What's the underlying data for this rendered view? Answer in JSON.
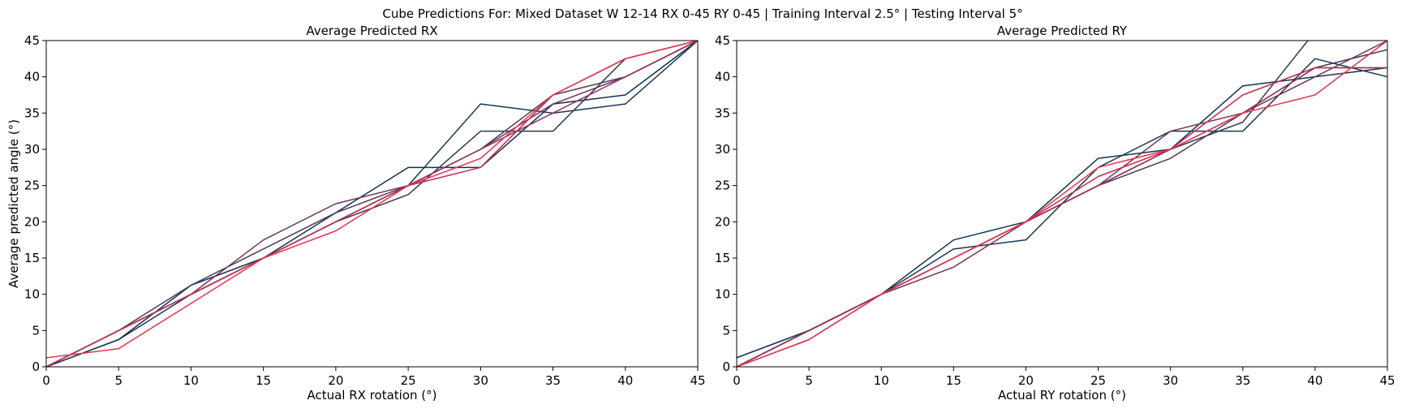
{
  "suptitle": "Cube Predictions For: Mixed Dataset W 12-14 RX 0-45 RY 0-45 | Training Interval 2.5° | Testing Interval 5°",
  "chart_data": [
    {
      "type": "line",
      "title": "Average Predicted RX",
      "xlabel": "Actual RX rotation (°)",
      "ylabel": "Average predicted angle (°)",
      "xlim": [
        0,
        45
      ],
      "ylim": [
        0,
        45
      ],
      "xticks": [
        0,
        5,
        10,
        15,
        20,
        25,
        30,
        35,
        40,
        45
      ],
      "yticks": [
        0,
        5,
        10,
        15,
        20,
        25,
        30,
        35,
        40,
        45
      ],
      "grid": false,
      "x": [
        0,
        5,
        10,
        15,
        20,
        25,
        30,
        35,
        40,
        45
      ],
      "series": [
        {
          "color": "#0e3350",
          "values": [
            0,
            3.75,
            11.25,
            15,
            21.25,
            27.5,
            27.5,
            36.25,
            37.5,
            45
          ]
        },
        {
          "color": "#1b3852",
          "values": [
            0,
            3.75,
            10,
            15,
            20,
            25,
            36.25,
            35,
            36.25,
            45
          ]
        },
        {
          "color": "#2d3a56",
          "values": [
            0,
            5,
            10,
            15,
            20,
            23.75,
            32.5,
            32.5,
            42.5,
            45
          ]
        },
        {
          "color": "#4b3a5c",
          "values": [
            0,
            5,
            11.25,
            16.25,
            21.25,
            25,
            30,
            37.5,
            40,
            45
          ]
        },
        {
          "color": "#6e3458",
          "values": [
            0,
            5,
            10,
            17.5,
            22.5,
            25,
            30,
            36.25,
            40,
            45
          ]
        },
        {
          "color": "#9a3158",
          "values": [
            0,
            5,
            10,
            15,
            20,
            25,
            30,
            35,
            40,
            45
          ]
        },
        {
          "color": "#c22d4f",
          "values": [
            0,
            5,
            10,
            15,
            20,
            25,
            27.5,
            37.5,
            42.5,
            45
          ]
        },
        {
          "color": "#e8334b",
          "values": [
            1.25,
            2.5,
            8.75,
            15,
            18.75,
            25,
            28.75,
            37.5,
            42.5,
            45
          ]
        }
      ]
    },
    {
      "type": "line",
      "title": "Average Predicted RY",
      "xlabel": "Actual RY rotation (°)",
      "ylabel": "",
      "xlim": [
        0,
        45
      ],
      "ylim": [
        0,
        45
      ],
      "xticks": [
        0,
        5,
        10,
        15,
        20,
        25,
        30,
        35,
        40,
        45
      ],
      "yticks": [
        0,
        5,
        10,
        15,
        20,
        25,
        30,
        35,
        40,
        45
      ],
      "grid": false,
      "x": [
        0,
        5,
        10,
        15,
        20,
        25,
        30,
        35,
        40,
        45
      ],
      "series": [
        {
          "color": "#0e3350",
          "values": [
            1.25,
            5,
            10,
            17.5,
            20,
            28.75,
            30,
            38.75,
            40,
            41.25
          ]
        },
        {
          "color": "#1b3852",
          "values": [
            1.25,
            5,
            10,
            16.25,
            17.5,
            27.5,
            32.5,
            32.5,
            42.5,
            40
          ]
        },
        {
          "color": "#2d3a56",
          "values": [
            0,
            5,
            10,
            15,
            20,
            25,
            30,
            33.75,
            46.25,
            45
          ]
        },
        {
          "color": "#4b3a5c",
          "values": [
            0,
            5,
            10,
            15,
            20,
            25,
            28.75,
            35,
            41.25,
            43.75
          ]
        },
        {
          "color": "#6e3458",
          "values": [
            0,
            5,
            10,
            13.75,
            20,
            25,
            32.5,
            35,
            40,
            45
          ]
        },
        {
          "color": "#9a3158",
          "values": [
            0,
            5,
            10,
            15,
            20,
            25,
            30,
            35,
            41.25,
            41.25
          ]
        },
        {
          "color": "#c22d4f",
          "values": [
            0,
            3.75,
            10,
            15,
            20,
            26.25,
            30,
            37.5,
            41.25,
            41.25
          ]
        },
        {
          "color": "#e8334b",
          "values": [
            0,
            3.75,
            10,
            15,
            20,
            27.5,
            30,
            35,
            37.5,
            45
          ]
        }
      ]
    }
  ]
}
